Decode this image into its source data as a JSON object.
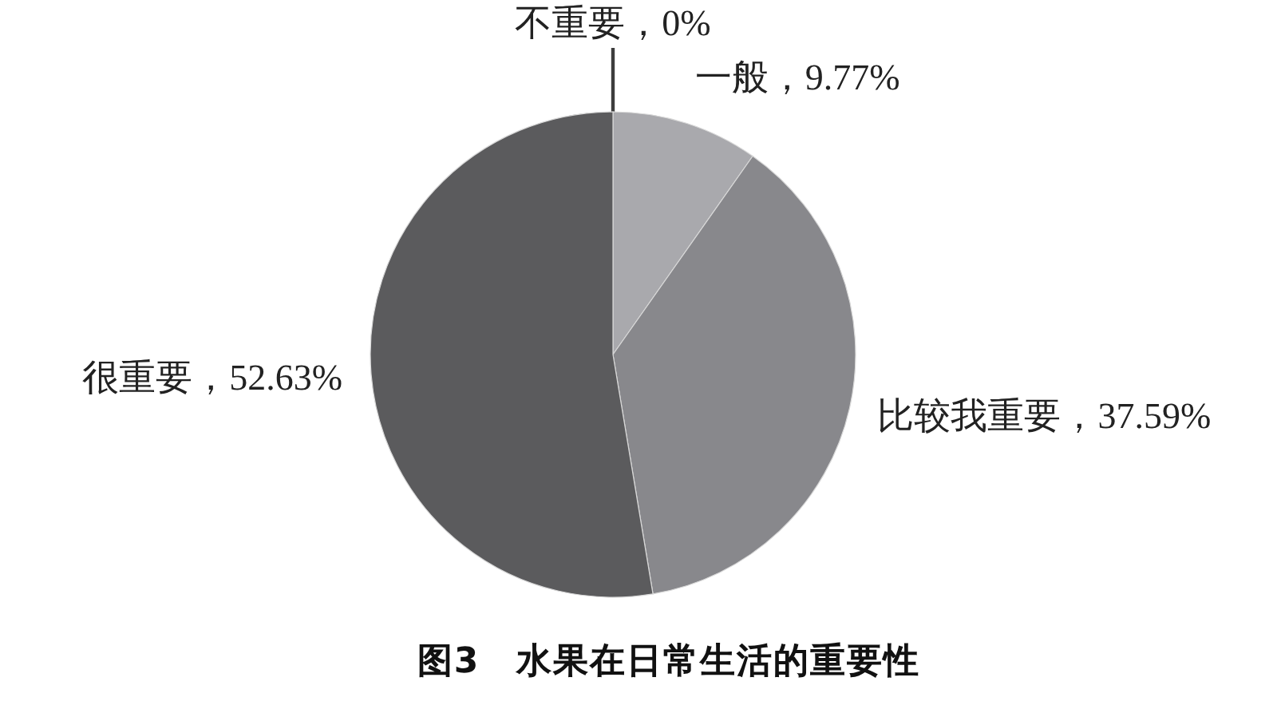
{
  "chart_data": {
    "type": "pie",
    "title": "图3　水果在日常生活的重要性",
    "categories": [
      "不重要",
      "一般",
      "比较我重要",
      "很重要"
    ],
    "values": [
      0,
      9.77,
      37.59,
      52.63
    ],
    "colors": [
      "#3c3c3c",
      "#a9a9ad",
      "#88888c",
      "#5b5b5d"
    ],
    "value_labels": [
      "，0%",
      "，9.77%",
      "，37.59%",
      "，52.63%"
    ]
  }
}
